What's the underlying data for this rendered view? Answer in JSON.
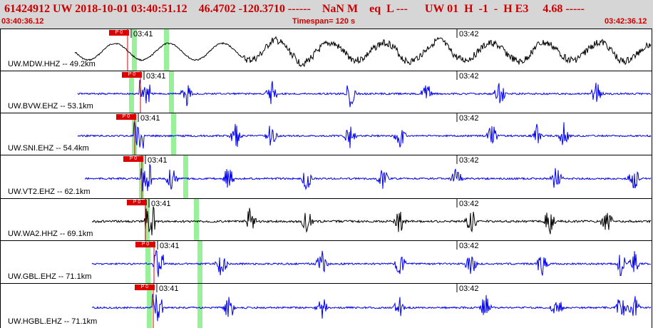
{
  "header": {
    "event_line": "61424912 UW 2018-10-01 03:40:51.12    46.4702 -120.3710 ------    NaN M    eq  L ---      UW 01  H  -1  -  H E3     4.68 -----",
    "start_time": "03:40:36.12",
    "timespan": "Timespan= 120 s",
    "end_time": "03:42:36.12"
  },
  "colors": {
    "header_bg": "#d6d6d6",
    "header_text": "#cc0000",
    "pick": "#dd0000",
    "window": "#98f098",
    "trace_black": "#000000",
    "trace_blue": "#0000ee"
  },
  "channels": [
    {
      "label": "UW.MDW.HHZ -- 49.2km",
      "color": "black",
      "pick_tag": "P 0",
      "tick_a": "03:41",
      "tick_b": "03:42"
    },
    {
      "label": "UW.BVW.EHZ -- 53.1km",
      "color": "blue",
      "pick_tag": "P 0",
      "tick_a": "03:41",
      "tick_b": "03:42"
    },
    {
      "label": "UW.SNI.EHZ -- 54.4km",
      "color": "blue",
      "pick_tag": "P 0",
      "tick_a": "03:41",
      "tick_b": "03:42"
    },
    {
      "label": "UW.VT2.EHZ -- 62.1km",
      "color": "blue",
      "pick_tag": "P 0",
      "tick_a": "03:41",
      "tick_b": "03:42"
    },
    {
      "label": "UW.WA2.HHZ -- 69.1km",
      "color": "black",
      "pick_tag": "P 0",
      "tick_a": "03:41",
      "tick_b": "03:42"
    },
    {
      "label": "UW.GBL.EHZ -- 71.1km",
      "color": "blue",
      "pick_tag": "P 0",
      "tick_a": "03:41",
      "tick_b": "03:42"
    },
    {
      "label": "UW.HGBL.EHZ -- 71.1km",
      "color": "blue",
      "pick_tag": "P 0",
      "tick_a": "03:41",
      "tick_b": "03:42"
    }
  ]
}
